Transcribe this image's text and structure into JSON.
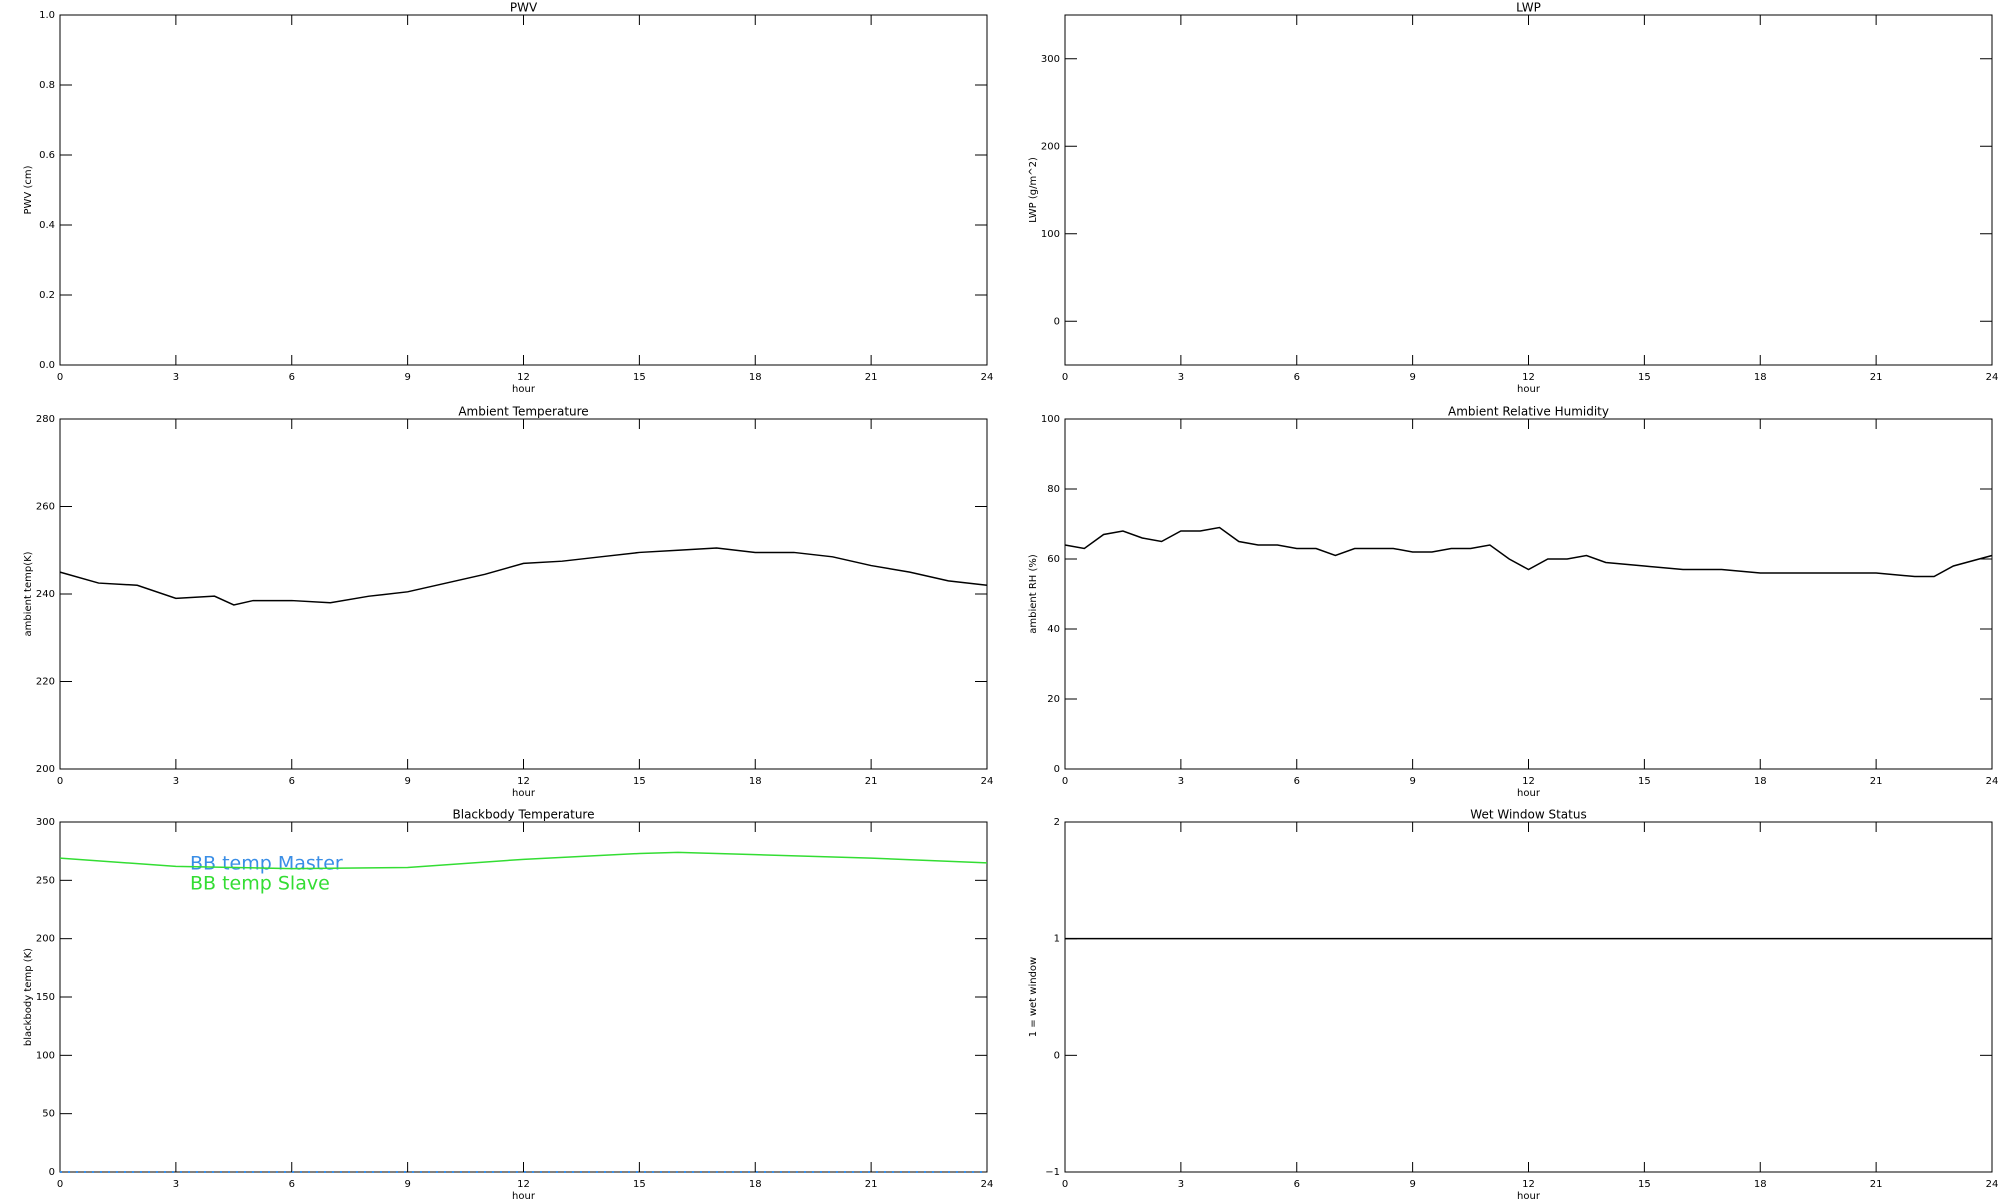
{
  "chart_data": [
    {
      "type": "line",
      "title": "PWV",
      "xlabel": "hour",
      "ylabel": "PWV (cm)",
      "xlim": [
        0,
        24
      ],
      "xticks": [
        0,
        3,
        6,
        9,
        12,
        15,
        18,
        21,
        24
      ],
      "ylim": [
        0,
        1
      ],
      "yticks": [
        {
          "value": 0,
          "label": "0.0"
        },
        0.2,
        0.4,
        0.6,
        0.8,
        {
          "value": 1,
          "label": "1.0"
        }
      ]
    },
    {
      "type": "line",
      "title": "LWP",
      "xlabel": "hour",
      "ylabel": "LWP (g/m^2)",
      "xlim": [
        0,
        24
      ],
      "xticks": [
        0,
        3,
        6,
        9,
        12,
        15,
        18,
        21,
        24
      ],
      "ylim": [
        -50,
        350
      ],
      "yticks": [
        0,
        100,
        200,
        300
      ]
    },
    {
      "type": "line",
      "title": "Ambient Temperature",
      "xlabel": "hour",
      "ylabel": "ambient temp(K)",
      "xlim": [
        0,
        24
      ],
      "xticks": [
        0,
        3,
        6,
        9,
        12,
        15,
        18,
        21,
        24
      ],
      "ylim": [
        200,
        280
      ],
      "yticks": [
        200,
        220,
        240,
        260,
        280
      ],
      "x": [
        0,
        1,
        2,
        3,
        4,
        4.5,
        5,
        6,
        7,
        8,
        9,
        10,
        11,
        12,
        13,
        14,
        15,
        16,
        17,
        18,
        19,
        20,
        21,
        22,
        23,
        24
      ],
      "series": [
        {
          "color": "#000000",
          "values": [
            245,
            242.5,
            242,
            239,
            239.5,
            237.5,
            238.5,
            238.5,
            238,
            239.5,
            240.5,
            242.5,
            244.5,
            247,
            247.5,
            248.5,
            249.5,
            250,
            250.5,
            249.5,
            249.5,
            248.5,
            246.5,
            245,
            243,
            242
          ]
        }
      ]
    },
    {
      "type": "line",
      "title": "Ambient Relative Humidity",
      "xlabel": "hour",
      "ylabel": "ambient RH (%)",
      "xlim": [
        0,
        24
      ],
      "xticks": [
        0,
        3,
        6,
        9,
        12,
        15,
        18,
        21,
        24
      ],
      "ylim": [
        0,
        100
      ],
      "yticks": [
        0,
        20,
        40,
        60,
        80,
        100
      ],
      "x": [
        0,
        0.5,
        1,
        1.5,
        2,
        2.5,
        3,
        3.5,
        4,
        4.5,
        5,
        5.5,
        6,
        6.5,
        7,
        7.5,
        8,
        8.5,
        9,
        9.5,
        10,
        10.5,
        11,
        11.5,
        12,
        12.5,
        13,
        13.5,
        14,
        15,
        16,
        17,
        18,
        19,
        20,
        21,
        22,
        22.5,
        23,
        24
      ],
      "series": [
        {
          "color": "#000000",
          "values": [
            64,
            63,
            67,
            68,
            66,
            65,
            68,
            68,
            69,
            65,
            64,
            64,
            63,
            63,
            61,
            63,
            63,
            63,
            62,
            62,
            63,
            63,
            64,
            60,
            57,
            60,
            60,
            61,
            59,
            58,
            57,
            57,
            56,
            56,
            56,
            56,
            55,
            55,
            58,
            61
          ]
        }
      ]
    },
    {
      "type": "line",
      "title": "Blackbody Temperature",
      "xlabel": "hour",
      "ylabel": "blackbody temp (K)",
      "xlim": [
        0,
        24
      ],
      "xticks": [
        0,
        3,
        6,
        9,
        12,
        15,
        18,
        21,
        24
      ],
      "ylim": [
        0,
        300
      ],
      "yticks": [
        0,
        50,
        100,
        150,
        200,
        250,
        300
      ],
      "x": [
        0,
        3,
        6,
        9,
        12,
        15,
        16,
        18,
        21,
        24
      ],
      "series": [
        {
          "name": "BB temp Master",
          "color": "#3a8ee6",
          "style": "dotted",
          "values": [
            0,
            0,
            0,
            0,
            0,
            0,
            0,
            0,
            0,
            0
          ]
        },
        {
          "name": "BB temp Slave",
          "color": "#33dd33",
          "values": [
            269,
            262,
            260,
            261,
            268,
            273,
            274,
            272,
            269,
            265
          ]
        }
      ]
    },
    {
      "type": "line",
      "title": "Wet Window Status",
      "xlabel": "hour",
      "ylabel": "1 = wet window",
      "xlim": [
        0,
        24
      ],
      "xticks": [
        0,
        3,
        6,
        9,
        12,
        15,
        18,
        21,
        24
      ],
      "ylim": [
        -1,
        2
      ],
      "yticks": [
        {
          "value": -1,
          "label": "−1"
        },
        0,
        1,
        2
      ],
      "x": [
        0,
        24
      ],
      "series": [
        {
          "color": "#000000",
          "values": [
            1,
            1
          ]
        }
      ]
    }
  ]
}
